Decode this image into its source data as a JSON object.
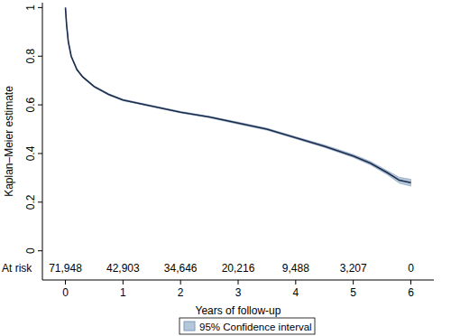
{
  "chart_data": {
    "type": "line",
    "y_label": "Kaplan–Meier estimate",
    "x_label": "Years of follow-up",
    "x": [
      0,
      0.02,
      0.05,
      0.1,
      0.2,
      0.3,
      0.5,
      0.75,
      1,
      1.5,
      2,
      2.5,
      3,
      3.5,
      4,
      4.5,
      5,
      5.3,
      5.6,
      5.8,
      6
    ],
    "series": [
      {
        "color": "#1c2c4c",
        "values": [
          1,
          0.93,
          0.86,
          0.8,
          0.745,
          0.715,
          0.675,
          0.643,
          0.62,
          0.595,
          0.57,
          0.55,
          0.525,
          0.5,
          0.465,
          0.43,
          0.39,
          0.36,
          0.32,
          0.29,
          0.28
        ],
        "ci_name": "95% Confidence interval",
        "ci_color": "#b4c6da",
        "ci_lower": [
          1,
          0.927,
          0.857,
          0.797,
          0.742,
          0.712,
          0.672,
          0.64,
          0.617,
          0.592,
          0.567,
          0.547,
          0.521,
          0.496,
          0.461,
          0.425,
          0.384,
          0.353,
          0.312,
          0.278,
          0.266
        ],
        "ci_upper": [
          1,
          0.933,
          0.863,
          0.803,
          0.748,
          0.718,
          0.678,
          0.646,
          0.623,
          0.598,
          0.573,
          0.553,
          0.529,
          0.504,
          0.469,
          0.435,
          0.396,
          0.367,
          0.328,
          0.302,
          0.294
        ]
      }
    ],
    "xlim": [
      -0.4,
      6.4
    ],
    "ylim": [
      -0.12,
      1.02
    ],
    "xticks": [
      0,
      1,
      2,
      3,
      4,
      5,
      6
    ],
    "yticks": [
      0,
      0.2,
      0.4,
      0.6,
      0.8,
      1
    ],
    "at_risk": {
      "label": "At risk",
      "x": [
        0,
        1,
        2,
        3,
        4,
        5,
        6
      ],
      "values": [
        71948,
        42903,
        34646,
        20216,
        9488,
        3207,
        0
      ],
      "value_labels": [
        "71,948",
        "42,903",
        "34,646",
        "20,216",
        "9,488",
        "3,207",
        "0"
      ]
    },
    "grid": false,
    "legend": "bottom"
  }
}
